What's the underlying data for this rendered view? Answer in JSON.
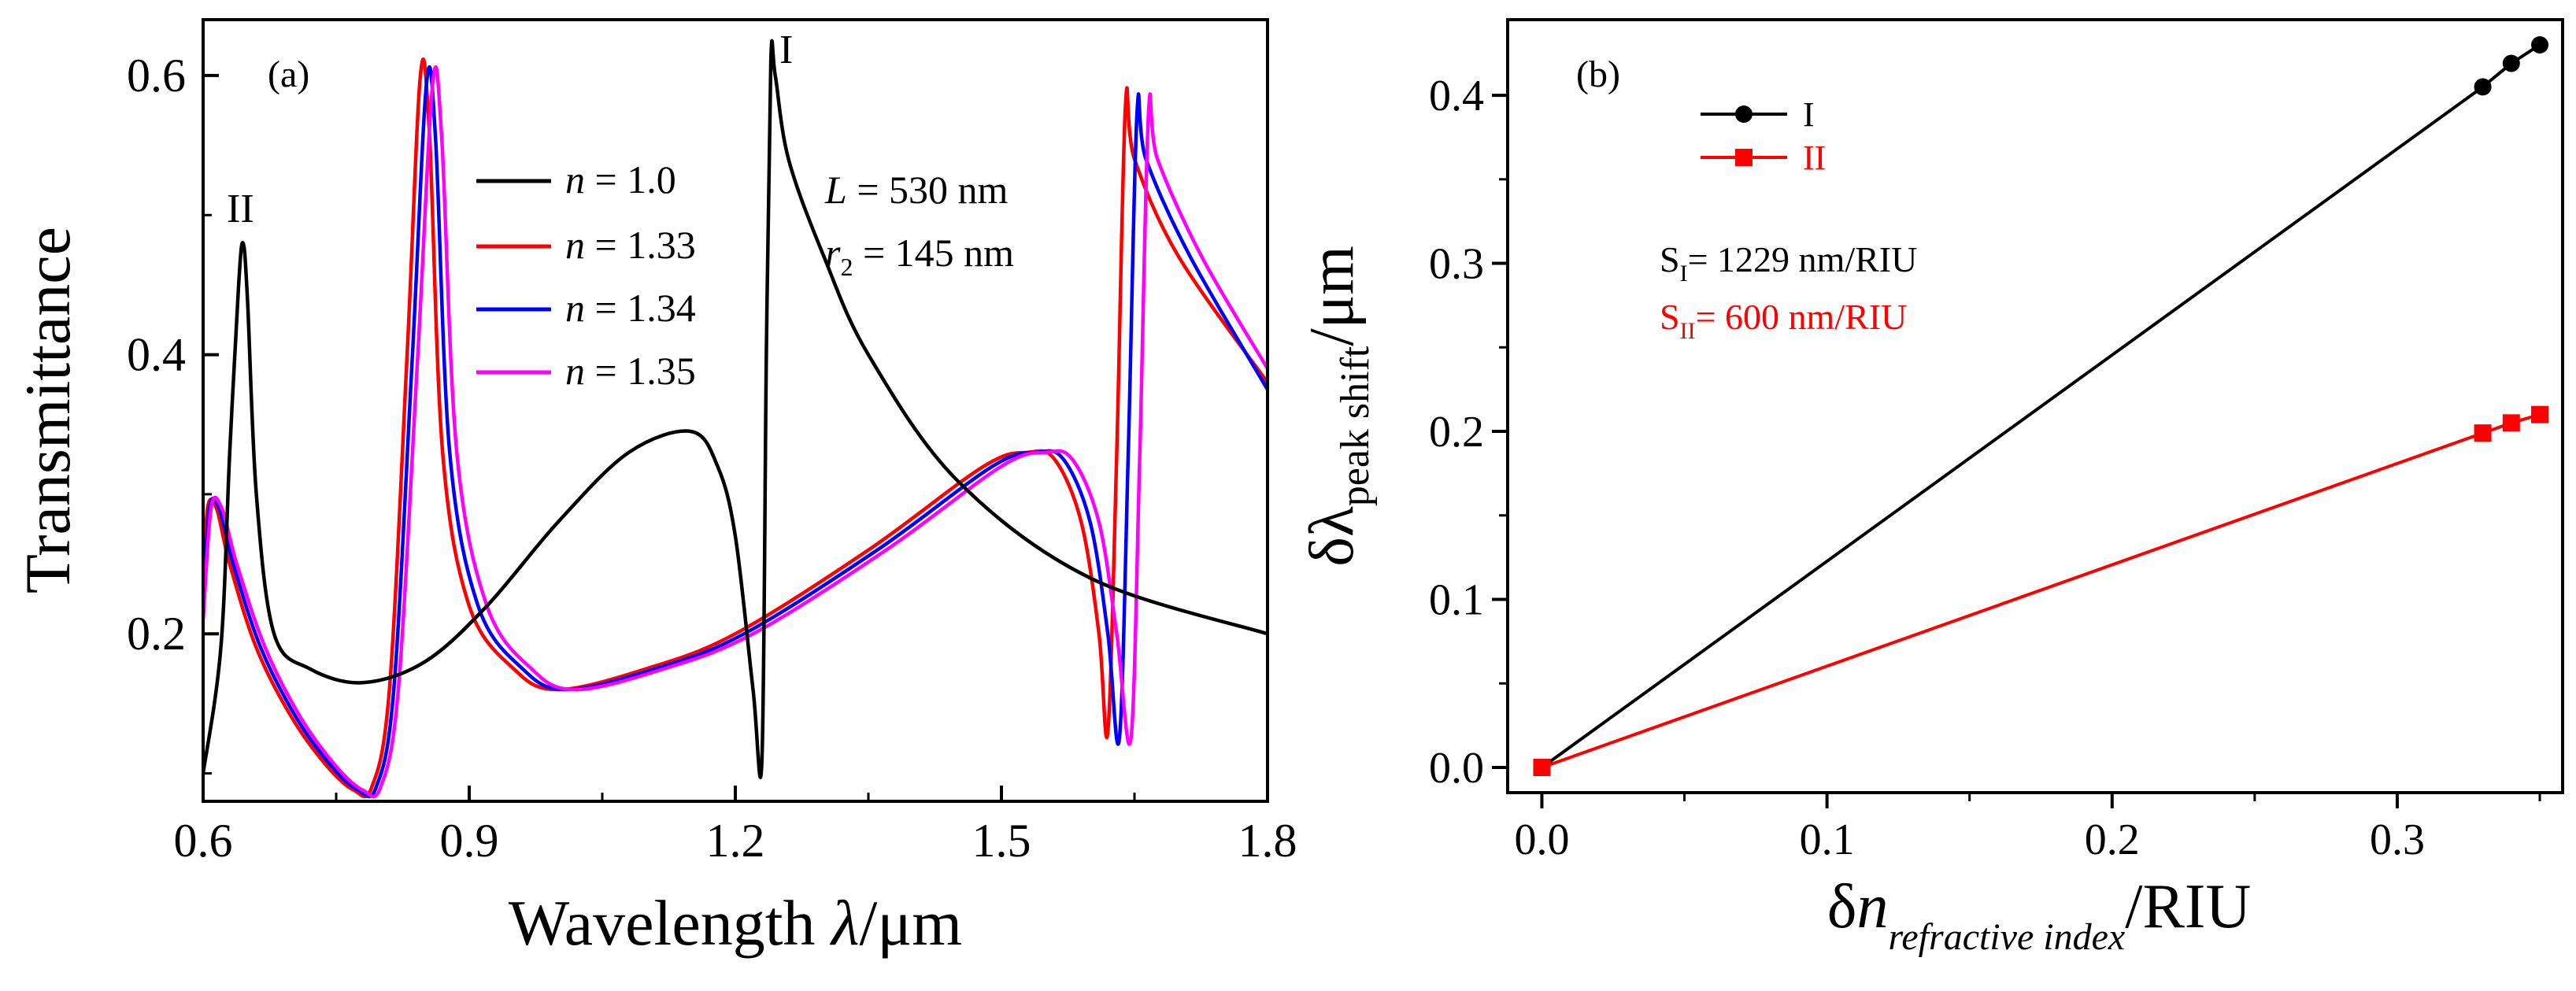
{
  "chart_data": [
    {
      "panel": "(a)",
      "type": "line",
      "xlabel_main": "Wavelength ",
      "xlabel_symbol": "λ",
      "xlabel_unit": "/μm",
      "ylabel": "Transmittance",
      "xlim": [
        0.6,
        1.8
      ],
      "ylim": [
        0.08,
        0.64
      ],
      "xticks": [
        "0.6",
        "0.9",
        "1.2",
        "1.5",
        "1.8"
      ],
      "yticks": [
        "0.2",
        "0.4",
        "0.6"
      ],
      "legend_position": "upper-middle",
      "params": {
        "L_sym": "L",
        "L_val": " = 530 nm",
        "r_sym": "r",
        "r_sub": "2",
        "r_val": " = 145 nm"
      },
      "peak_labels": [
        "I",
        "II"
      ],
      "series": [
        {
          "name": "n = 1.0",
          "sym": "n",
          "val": " = 1.0",
          "color": "#000000",
          "x": [
            0.6,
            0.62,
            0.63,
            0.64,
            0.645,
            0.65,
            0.66,
            0.68,
            0.72,
            0.78,
            0.85,
            0.92,
            1.0,
            1.08,
            1.15,
            1.18,
            1.2,
            1.22,
            1.23,
            1.235,
            1.24,
            1.245,
            1.26,
            1.3,
            1.35,
            1.45,
            1.6,
            1.8
          ],
          "y": [
            0.1,
            0.19,
            0.33,
            0.45,
            0.48,
            0.44,
            0.3,
            0.2,
            0.175,
            0.165,
            0.18,
            0.22,
            0.28,
            0.33,
            0.345,
            0.32,
            0.27,
            0.16,
            0.11,
            0.4,
            0.61,
            0.6,
            0.54,
            0.47,
            0.4,
            0.31,
            0.24,
            0.2
          ]
        },
        {
          "name": "n = 1.33",
          "sym": "n",
          "val": " = 1.33",
          "color": "#ff0000",
          "x": [
            0.6,
            0.605,
            0.615,
            0.63,
            0.66,
            0.7,
            0.74,
            0.77,
            0.79,
            0.81,
            0.83,
            0.845,
            0.855,
            0.87,
            0.9,
            0.95,
            1.0,
            1.1,
            1.2,
            1.35,
            1.48,
            1.53,
            1.56,
            1.59,
            1.61,
            1.62,
            1.63,
            1.64,
            1.65,
            1.7,
            1.8
          ],
          "y": [
            0.23,
            0.29,
            0.29,
            0.25,
            0.19,
            0.14,
            0.105,
            0.088,
            0.09,
            0.16,
            0.4,
            0.6,
            0.56,
            0.33,
            0.22,
            0.175,
            0.16,
            0.175,
            0.2,
            0.26,
            0.32,
            0.33,
            0.325,
            0.28,
            0.2,
            0.13,
            0.33,
            0.58,
            0.54,
            0.47,
            0.38
          ]
        },
        {
          "name": "n = 1.34",
          "sym": "n",
          "val": " = 1.34",
          "color": "#0000ff",
          "x": [
            0.6,
            0.607,
            0.618,
            0.634,
            0.665,
            0.705,
            0.745,
            0.775,
            0.795,
            0.815,
            0.836,
            0.852,
            0.862,
            0.878,
            0.91,
            0.96,
            1.01,
            1.11,
            1.21,
            1.36,
            1.49,
            1.54,
            1.57,
            1.6,
            1.62,
            1.633,
            1.643,
            1.653,
            1.663,
            1.713,
            1.8
          ],
          "y": [
            0.22,
            0.29,
            0.29,
            0.25,
            0.19,
            0.14,
            0.105,
            0.088,
            0.09,
            0.16,
            0.4,
            0.595,
            0.555,
            0.33,
            0.22,
            0.175,
            0.16,
            0.175,
            0.2,
            0.26,
            0.32,
            0.33,
            0.325,
            0.28,
            0.2,
            0.125,
            0.33,
            0.575,
            0.54,
            0.47,
            0.375
          ]
        },
        {
          "name": "n = 1.35",
          "sym": "n",
          "val": " = 1.35",
          "color": "#ff00ff",
          "x": [
            0.6,
            0.609,
            0.621,
            0.638,
            0.67,
            0.71,
            0.75,
            0.78,
            0.8,
            0.82,
            0.842,
            0.859,
            0.869,
            0.886,
            0.92,
            0.97,
            1.02,
            1.12,
            1.22,
            1.37,
            1.5,
            1.55,
            1.58,
            1.61,
            1.63,
            1.646,
            1.656,
            1.666,
            1.676,
            1.726,
            1.8
          ],
          "y": [
            0.21,
            0.29,
            0.29,
            0.25,
            0.19,
            0.14,
            0.105,
            0.088,
            0.09,
            0.16,
            0.4,
            0.595,
            0.555,
            0.33,
            0.22,
            0.175,
            0.16,
            0.175,
            0.2,
            0.26,
            0.32,
            0.33,
            0.325,
            0.28,
            0.2,
            0.125,
            0.33,
            0.575,
            0.54,
            0.47,
            0.39
          ]
        }
      ]
    },
    {
      "panel": "(b)",
      "type": "line",
      "ylabel_main": "δλ",
      "ylabel_sub": "peak shift",
      "ylabel_unit": "/μm",
      "xlabel_main": "δ",
      "xlabel_sym": "n",
      "xlabel_sub": "refractive index",
      "xlabel_unit": "/RIU",
      "xlim": [
        -0.012,
        0.358
      ],
      "ylim": [
        -0.015,
        0.445
      ],
      "xticks": [
        "0.0",
        "0.1",
        "0.2",
        "0.3"
      ],
      "yticks": [
        "0.0",
        "0.1",
        "0.2",
        "0.3",
        "0.4"
      ],
      "legend_position": "top-left",
      "annotations": [
        {
          "main": "S",
          "sub": "I",
          "text": "= 1229 nm/RIU",
          "color": "#000000"
        },
        {
          "main": "S",
          "sub": "II",
          "text": "= 600 nm/RIU",
          "color": "#ff0000"
        }
      ],
      "series": [
        {
          "name": "I",
          "color": "#000000",
          "marker": "circle",
          "x": [
            0.0,
            0.33,
            0.34,
            0.35
          ],
          "y": [
            0.0,
            0.405,
            0.419,
            0.43
          ]
        },
        {
          "name": "II",
          "color": "#ff0000",
          "marker": "square",
          "x": [
            0.0,
            0.33,
            0.34,
            0.35
          ],
          "y": [
            0.0,
            0.199,
            0.205,
            0.21
          ]
        }
      ]
    }
  ]
}
